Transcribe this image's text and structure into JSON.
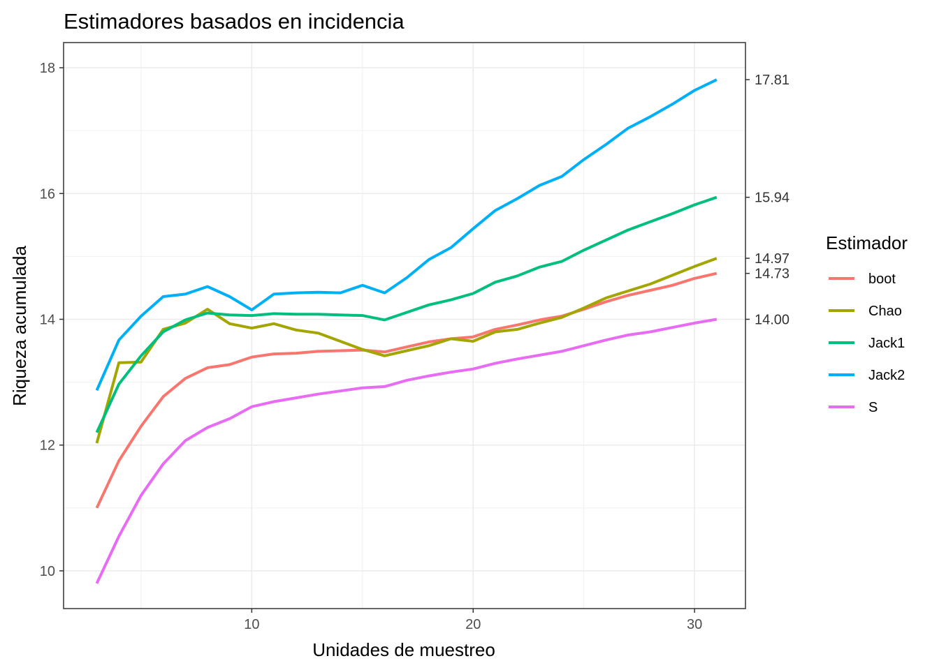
{
  "chart_data": {
    "type": "line",
    "title": "Estimadores basados en incidencia",
    "xlabel": "Unidades de muestreo",
    "ylabel": "Riqueza acumulada",
    "xlim": [
      1.5,
      32.3
    ],
    "ylim": [
      9.4,
      18.4
    ],
    "x_ticks": [
      10,
      20,
      30
    ],
    "y_ticks": [
      10,
      12,
      14,
      16,
      18
    ],
    "secondary_axis_labels": [
      "17.81",
      "15.94",
      "14.97",
      "14.73",
      "14.00"
    ],
    "secondary_axis_values": [
      17.81,
      15.94,
      14.97,
      14.73,
      14.0
    ],
    "grid": true,
    "legend_title": "Estimador",
    "legend_position": "right",
    "x": [
      3,
      4,
      5,
      6,
      7,
      8,
      9,
      10,
      11,
      12,
      13,
      14,
      15,
      16,
      17,
      18,
      19,
      20,
      21,
      22,
      23,
      24,
      25,
      26,
      27,
      28,
      29,
      30,
      31
    ],
    "series": [
      {
        "name": "boot",
        "color": "#F8766D",
        "values": [
          11.0,
          11.75,
          12.3,
          12.77,
          13.06,
          13.23,
          13.28,
          13.4,
          13.45,
          13.46,
          13.49,
          13.5,
          13.51,
          13.48,
          13.56,
          13.64,
          13.69,
          13.72,
          13.84,
          13.91,
          13.99,
          14.05,
          14.16,
          14.28,
          14.38,
          14.46,
          14.54,
          14.65,
          14.73
        ]
      },
      {
        "name": "Chao",
        "color": "#A3A500",
        "values": [
          12.03,
          13.31,
          13.32,
          13.84,
          13.94,
          14.16,
          13.93,
          13.86,
          13.93,
          13.83,
          13.78,
          13.65,
          13.52,
          13.42,
          13.5,
          13.58,
          13.69,
          13.65,
          13.8,
          13.84,
          13.94,
          14.03,
          14.18,
          14.34,
          14.45,
          14.56,
          14.7,
          14.84,
          14.97
        ]
      },
      {
        "name": "Jack1",
        "color": "#00BF7D",
        "values": [
          12.2,
          12.97,
          13.42,
          13.8,
          13.99,
          14.1,
          14.07,
          14.06,
          14.09,
          14.08,
          14.08,
          14.07,
          14.06,
          13.99,
          14.11,
          14.23,
          14.31,
          14.41,
          14.59,
          14.69,
          14.83,
          14.92,
          15.1,
          15.26,
          15.42,
          15.55,
          15.68,
          15.82,
          15.94
        ]
      },
      {
        "name": "Jack2",
        "color": "#00B0F6",
        "values": [
          12.87,
          13.67,
          14.05,
          14.36,
          14.4,
          14.52,
          14.36,
          14.15,
          14.4,
          14.42,
          14.43,
          14.42,
          14.54,
          14.42,
          14.66,
          14.95,
          15.14,
          15.44,
          15.73,
          15.92,
          16.13,
          16.27,
          16.54,
          16.78,
          17.04,
          17.22,
          17.42,
          17.64,
          17.81
        ]
      },
      {
        "name": "S",
        "color": "#E76BF3",
        "values": [
          9.8,
          10.55,
          11.2,
          11.7,
          12.07,
          12.28,
          12.42,
          12.61,
          12.69,
          12.75,
          12.81,
          12.86,
          12.91,
          12.93,
          13.03,
          13.1,
          13.16,
          13.21,
          13.3,
          13.37,
          13.43,
          13.49,
          13.58,
          13.67,
          13.75,
          13.8,
          13.87,
          13.94,
          14.0
        ]
      }
    ]
  }
}
